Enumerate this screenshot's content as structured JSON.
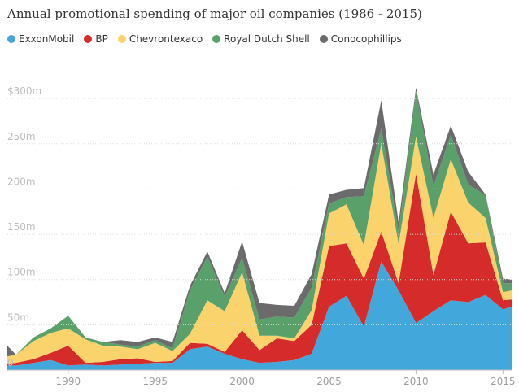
{
  "chart_data": {
    "type": "area",
    "stacked": true,
    "title": "Annual promotional spending of major oil companies (1986 - 2015)",
    "ylim": [
      0,
      310
    ],
    "y_ticks": [
      0,
      50,
      100,
      150,
      200,
      250,
      300
    ],
    "y_tick_labels": [
      "0",
      "50m",
      "100m",
      "150m",
      "200m",
      "250m",
      "$300m"
    ],
    "x_ticks": [
      1990,
      1995,
      2000,
      2005,
      2010,
      2015
    ],
    "x_tick_labels": [
      "1990",
      "1995",
      "2000",
      "2005",
      "2010",
      "2015"
    ],
    "x": [
      1986.5,
      1987,
      1988,
      1989,
      1990,
      1991,
      1992,
      1993,
      1994,
      1995,
      1996,
      1997,
      1998,
      1999,
      2000,
      2001,
      2002,
      2003,
      2004,
      2005,
      2006,
      2007,
      2008,
      2009,
      2010,
      2011,
      2012,
      2013,
      2014,
      2015,
      2015.5
    ],
    "grid": true,
    "legend_position": "top-left",
    "series": [
      {
        "name": "ExxonMobil",
        "color": "#42a8db",
        "values": [
          5,
          5,
          8,
          11,
          5,
          6,
          5,
          6,
          7,
          8,
          8,
          23,
          26,
          18,
          12,
          8,
          9,
          11,
          18,
          70,
          82,
          48,
          120,
          88,
          52,
          65,
          77,
          75,
          83,
          67,
          70
        ]
      },
      {
        "name": "BP",
        "color": "#d62b2b",
        "values": [
          2,
          3,
          4,
          8,
          22,
          2,
          4,
          6,
          6,
          1,
          2,
          7,
          3,
          2,
          32,
          14,
          26,
          21,
          32,
          67,
          58,
          53,
          33,
          8,
          165,
          40,
          98,
          65,
          58,
          10,
          8
        ]
      },
      {
        "name": "Chevrontexaco",
        "color": "#fbd36c",
        "values": [
          8,
          9,
          20,
          22,
          19,
          26,
          18,
          14,
          10,
          21,
          11,
          10,
          48,
          45,
          64,
          16,
          3,
          3,
          16,
          36,
          43,
          37,
          97,
          43,
          41,
          63,
          58,
          45,
          27,
          9,
          10
        ]
      },
      {
        "name": "Royal Dutch Shell",
        "color": "#5aa06a",
        "values": [
          0,
          0,
          4,
          5,
          14,
          2,
          4,
          2,
          3,
          3,
          3,
          48,
          48,
          16,
          16,
          18,
          21,
          23,
          25,
          11,
          8,
          54,
          17,
          14,
          50,
          35,
          27,
          20,
          25,
          10,
          8
        ]
      },
      {
        "name": "Conocophillips",
        "color": "#6b6b6b",
        "values": [
          12,
          0,
          0,
          0,
          0,
          0,
          0,
          5,
          5,
          3,
          7,
          5,
          6,
          4,
          18,
          18,
          13,
          13,
          15,
          10,
          8,
          9,
          31,
          10,
          4,
          13,
          10,
          14,
          1,
          5,
          4
        ]
      }
    ]
  }
}
